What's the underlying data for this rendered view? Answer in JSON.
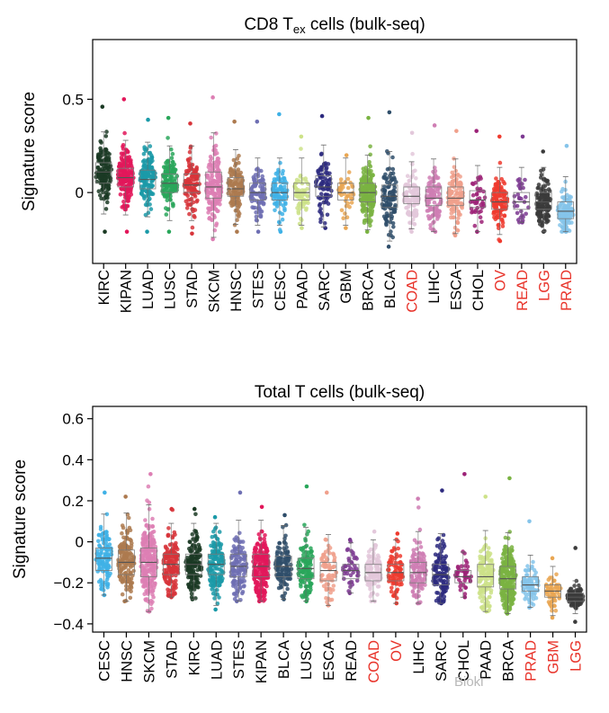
{
  "colors": {
    "highlight_label": "#e8332a",
    "normal_label": "#000000",
    "axis": "#000000"
  },
  "watermark_text": "Bioki",
  "chart_data": [
    {
      "type": "box-jitter",
      "title_main": "CD8 T",
      "title_sub": "ex",
      "title_tail": " cells (bulk-seq)",
      "ylabel": "Signature score",
      "ylim": [
        -0.38,
        0.82
      ],
      "yticks": [
        0.5,
        0
      ],
      "ytick_labels": [
        "0.5",
        "0"
      ],
      "grid": false,
      "categories": [
        "KIRC",
        "KIPAN",
        "LUAD",
        "LUSC",
        "STAD",
        "SKCM",
        "HNSC",
        "STES",
        "CESC",
        "PAAD",
        "SARC",
        "GBM",
        "BRCA",
        "BLCA",
        "COAD",
        "LIHC",
        "ESCA",
        "CHOL",
        "OV",
        "READ",
        "LGG",
        "PRAD"
      ],
      "highlight": [
        "COAD",
        "OV",
        "READ",
        "LGG",
        "PRAD"
      ],
      "series_colors": [
        "#1b3a24",
        "#e2175a",
        "#1b9aa8",
        "#29a65a",
        "#d7343a",
        "#dd7fb4",
        "#ad7a4f",
        "#6e6fb3",
        "#3fb1e6",
        "#cde288",
        "#2d2a7f",
        "#e9a652",
        "#7ab342",
        "#2f4e6a",
        "#e3c8db",
        "#cf7eb4",
        "#f0a08c",
        "#9c2277",
        "#ef3b2f",
        "#7d3a92",
        "#3b3b3b",
        "#85c4ea"
      ],
      "medians": [
        0.11,
        0.08,
        0.07,
        0.05,
        0.04,
        0.03,
        0.02,
        0.0,
        0.0,
        0.0,
        0.03,
        0.0,
        0.0,
        -0.02,
        -0.02,
        -0.03,
        -0.03,
        -0.04,
        -0.05,
        -0.05,
        -0.05,
        -0.1
      ],
      "q1": [
        0.05,
        0.03,
        0.02,
        0.0,
        0.0,
        -0.03,
        -0.02,
        -0.04,
        -0.04,
        -0.04,
        -0.02,
        -0.04,
        -0.05,
        -0.08,
        -0.06,
        -0.07,
        -0.07,
        -0.08,
        -0.09,
        -0.09,
        -0.09,
        -0.14
      ],
      "q3": [
        0.16,
        0.13,
        0.12,
        0.1,
        0.1,
        0.11,
        0.08,
        0.05,
        0.05,
        0.05,
        0.09,
        0.05,
        0.05,
        0.04,
        0.03,
        0.03,
        0.03,
        0.01,
        0.0,
        0.0,
        0.0,
        -0.05
      ],
      "max": [
        0.46,
        0.5,
        0.39,
        0.4,
        0.37,
        0.51,
        0.38,
        0.38,
        0.42,
        0.3,
        0.41,
        0.2,
        0.4,
        0.43,
        0.32,
        0.36,
        0.33,
        0.33,
        0.3,
        0.3,
        0.22,
        0.25
      ],
      "min": [
        -0.21,
        -0.21,
        -0.21,
        -0.21,
        -0.22,
        -0.25,
        -0.21,
        -0.21,
        -0.21,
        -0.19,
        -0.19,
        -0.19,
        -0.21,
        -0.29,
        -0.21,
        -0.21,
        -0.23,
        -0.21,
        -0.26,
        -0.16,
        -0.21,
        -0.21
      ],
      "counts": [
        150,
        190,
        140,
        130,
        110,
        170,
        130,
        90,
        90,
        60,
        80,
        40,
        210,
        100,
        120,
        100,
        110,
        40,
        120,
        30,
        140,
        120
      ]
    },
    {
      "type": "box-jitter",
      "title_main": "Total T cells (bulk-seq)",
      "title_sub": "",
      "title_tail": "",
      "ylabel": "Signature score",
      "ylim": [
        -0.44,
        0.66
      ],
      "yticks": [
        0.6,
        0.4,
        0.2,
        0,
        -0.2,
        -0.4
      ],
      "ytick_labels": [
        "0.6",
        "0.4",
        "0.2",
        "0",
        "−0.2",
        "−0.4"
      ],
      "grid": false,
      "categories": [
        "CESC",
        "HNSC",
        "SKCM",
        "STAD",
        "KIRC",
        "LUAD",
        "STES",
        "KIPAN",
        "BLCA",
        "LUSC",
        "ESCA",
        "READ",
        "COAD",
        "OV",
        "LIHC",
        "SARC",
        "CHOL",
        "PAAD",
        "BRCA",
        "PRAD",
        "GBM",
        "LGG"
      ],
      "highlight": [
        "COAD",
        "OV",
        "PRAD",
        "GBM",
        "LGG"
      ],
      "series_colors": [
        "#3fb1e6",
        "#ad7a4f",
        "#dd7fb4",
        "#d7343a",
        "#1b3a24",
        "#1b9aa8",
        "#6e6fb3",
        "#e2175a",
        "#2f4e6a",
        "#29a65a",
        "#f0a08c",
        "#7d3a92",
        "#e3c8db",
        "#ef3b2f",
        "#cf7eb4",
        "#2d2a7f",
        "#9c2277",
        "#cde288",
        "#7ab342",
        "#85c4ea",
        "#e9a652",
        "#3b3b3b"
      ],
      "medians": [
        -0.08,
        -0.1,
        -0.1,
        -0.11,
        -0.11,
        -0.11,
        -0.12,
        -0.12,
        -0.12,
        -0.13,
        -0.14,
        -0.14,
        -0.15,
        -0.15,
        -0.15,
        -0.16,
        -0.17,
        -0.17,
        -0.18,
        -0.21,
        -0.24,
        -0.27
      ],
      "q1": [
        -0.14,
        -0.16,
        -0.17,
        -0.16,
        -0.16,
        -0.16,
        -0.17,
        -0.17,
        -0.17,
        -0.18,
        -0.19,
        -0.18,
        -0.19,
        -0.19,
        -0.2,
        -0.21,
        -0.2,
        -0.22,
        -0.23,
        -0.24,
        -0.27,
        -0.29
      ],
      "q3": [
        -0.03,
        -0.04,
        -0.03,
        -0.06,
        -0.06,
        -0.06,
        -0.06,
        -0.06,
        -0.07,
        -0.08,
        -0.1,
        -0.11,
        -0.11,
        -0.11,
        -0.1,
        -0.11,
        -0.14,
        -0.11,
        -0.12,
        -0.17,
        -0.21,
        -0.25
      ],
      "max": [
        0.24,
        0.22,
        0.33,
        0.16,
        0.16,
        0.12,
        0.24,
        0.17,
        0.13,
        0.27,
        0.24,
        0.01,
        0.05,
        0.04,
        0.21,
        0.25,
        0.33,
        0.22,
        0.31,
        0.1,
        -0.08,
        -0.03
      ],
      "min": [
        -0.26,
        -0.29,
        -0.34,
        -0.27,
        -0.28,
        -0.33,
        -0.29,
        -0.29,
        -0.28,
        -0.29,
        -0.31,
        -0.25,
        -0.29,
        -0.3,
        -0.3,
        -0.3,
        -0.27,
        -0.34,
        -0.35,
        -0.32,
        -0.37,
        -0.39
      ],
      "counts": [
        120,
        160,
        220,
        150,
        150,
        140,
        120,
        200,
        110,
        120,
        70,
        40,
        100,
        90,
        110,
        120,
        40,
        130,
        260,
        80,
        60,
        100
      ]
    }
  ]
}
